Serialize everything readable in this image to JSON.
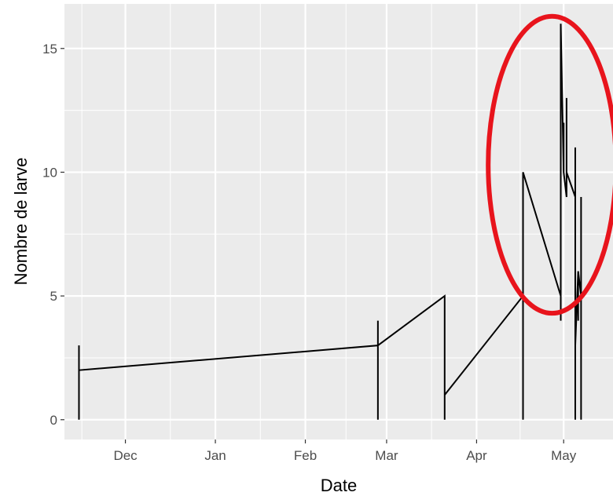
{
  "chart_data": {
    "type": "line",
    "xlabel": "Date",
    "ylabel": "Nombre de larve",
    "x_axis_type": "date",
    "xlim": [
      "2021-11-10",
      "2021-05-18"
    ],
    "x_ticks": [
      {
        "label": "Dec",
        "date": "2021-12-01"
      },
      {
        "label": "Jan",
        "date": "2022-01-01"
      },
      {
        "label": "Feb",
        "date": "2022-02-01"
      },
      {
        "label": "Mar",
        "date": "2022-03-01"
      },
      {
        "label": "Apr",
        "date": "2022-04-01"
      },
      {
        "label": "May",
        "date": "2022-05-01"
      }
    ],
    "ylim": [
      -0.8,
      16.8
    ],
    "y_ticks": [
      0,
      5,
      10,
      15
    ],
    "grid": true,
    "panel_background": "#ebebeb",
    "gridline_color": "#ffffff",
    "line_color": "#000000",
    "series": [
      {
        "points": [
          [
            "2021-11-15",
            0
          ],
          [
            "2021-11-15",
            3
          ],
          [
            "2021-11-15",
            2
          ],
          [
            "2022-02-26",
            3
          ],
          [
            "2022-02-26",
            4
          ],
          [
            "2022-02-26",
            0
          ],
          [
            "2022-02-26",
            3
          ],
          [
            "2022-03-21",
            5
          ],
          [
            "2022-03-21",
            0
          ],
          [
            "2022-03-21",
            1
          ],
          [
            "2022-04-17",
            5
          ],
          [
            "2022-04-17",
            0
          ],
          [
            "2022-04-17",
            10
          ],
          [
            "2022-04-30",
            5
          ],
          [
            "2022-04-30",
            4
          ],
          [
            "2022-04-30",
            16
          ],
          [
            "2022-05-01",
            10
          ],
          [
            "2022-05-01",
            12
          ],
          [
            "2022-05-01",
            10
          ],
          [
            "2022-05-02",
            9
          ],
          [
            "2022-05-02",
            13
          ],
          [
            "2022-05-02",
            10
          ],
          [
            "2022-05-05",
            9
          ],
          [
            "2022-05-05",
            0
          ],
          [
            "2022-05-05",
            11
          ],
          [
            "2022-05-05",
            3
          ],
          [
            "2022-05-06",
            6
          ],
          [
            "2022-05-06",
            4
          ],
          [
            "2022-05-06",
            6
          ],
          [
            "2022-05-07",
            5
          ],
          [
            "2022-05-07",
            9
          ],
          [
            "2022-05-07",
            0
          ]
        ]
      }
    ],
    "annotation": {
      "shape": "ellipse",
      "color": "#e8141c",
      "center": [
        "2022-04-27",
        10.3
      ],
      "radius_days": 22,
      "radius_y": 6
    }
  }
}
